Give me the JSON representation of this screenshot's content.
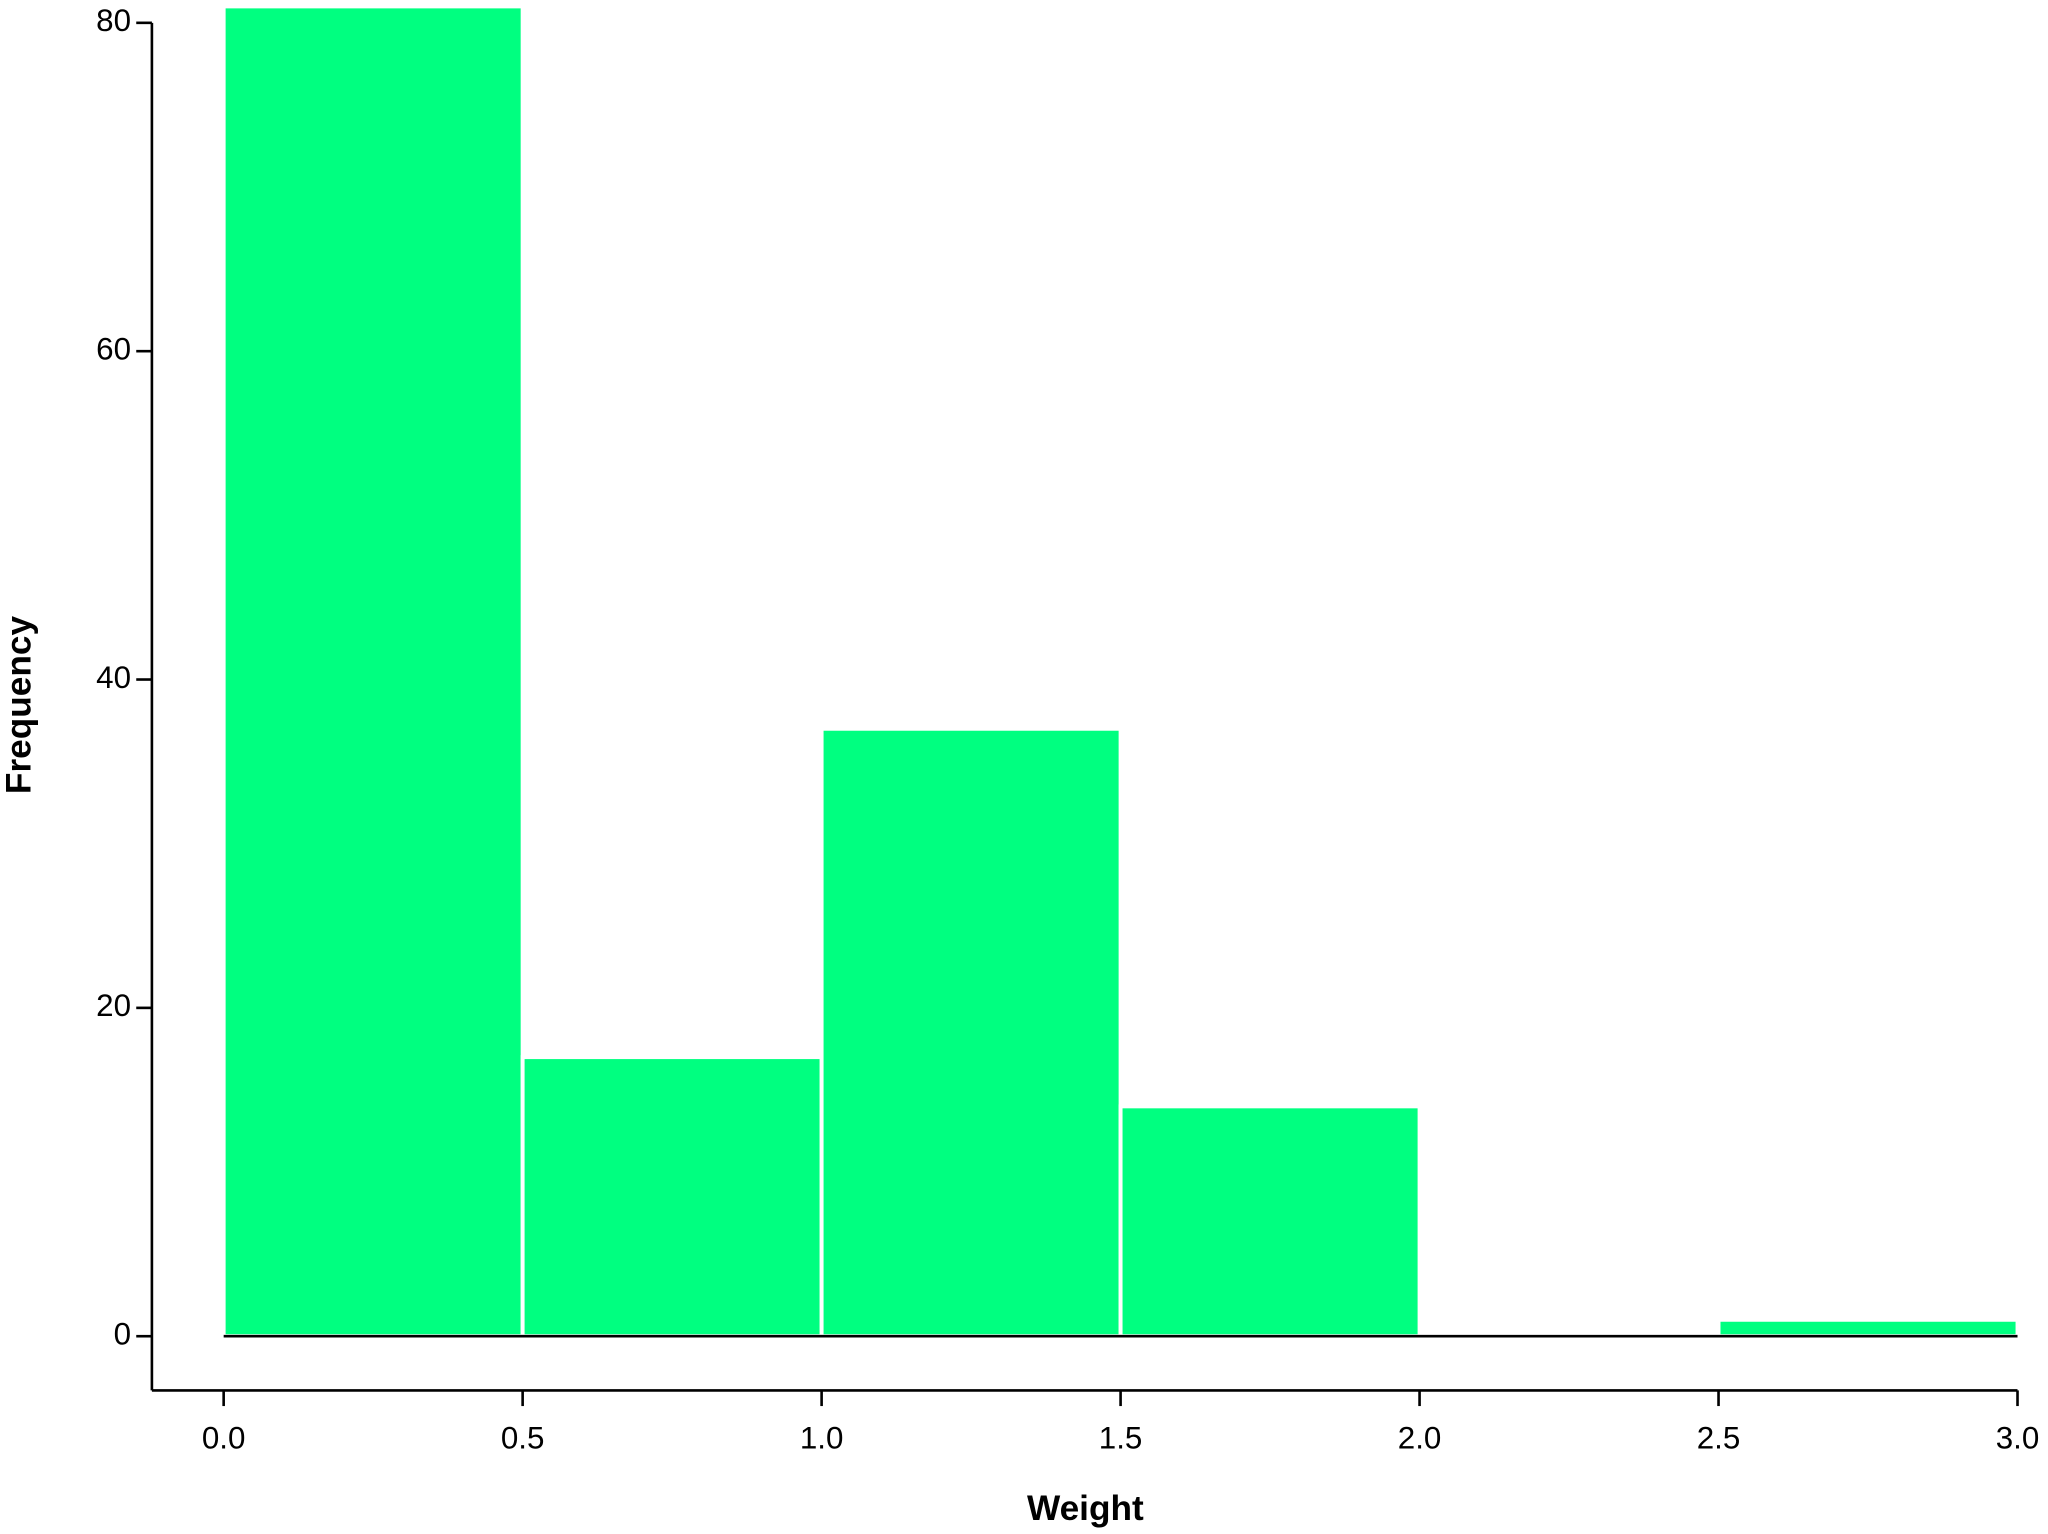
{
  "chart_data": {
    "type": "histogram",
    "xlabel": "Weight",
    "ylabel": "Frequency",
    "bins": [
      0,
      0.5,
      1,
      1.5,
      2,
      2.5,
      3
    ],
    "values": [
      81,
      17,
      37,
      14,
      0,
      1
    ],
    "color": "#00ff80",
    "xlim": [
      -0.12,
      3.0
    ],
    "xticks": [
      {
        "value": 0,
        "label": "0.0"
      },
      0.5,
      {
        "value": 1,
        "label": "1.0"
      },
      1.5,
      {
        "value": 2,
        "label": "2.0"
      },
      2.5,
      {
        "value": 3,
        "label": "3.0"
      }
    ],
    "ylim": [
      -3.3,
      81.2
    ],
    "yticks": [
      0,
      20,
      40,
      60,
      80
    ],
    "grid": false
  }
}
